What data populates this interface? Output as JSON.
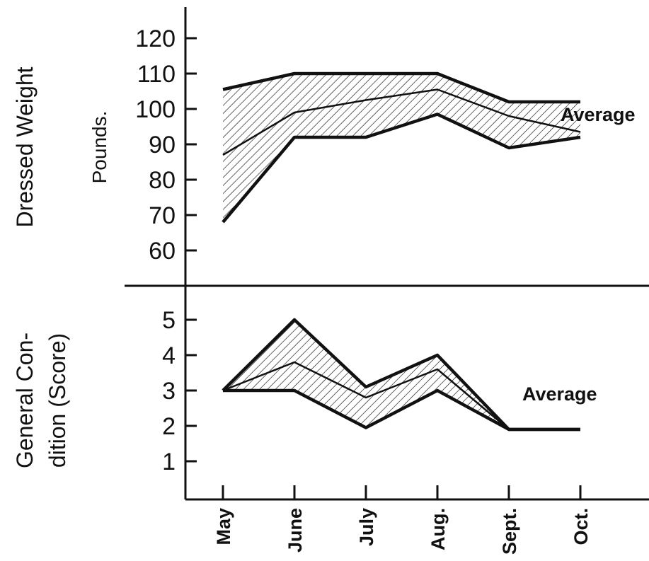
{
  "chart_data": [
    {
      "type": "area",
      "panel": "top",
      "ylabel": "Dressed Weight",
      "unit_label": "Pounds.",
      "categories": [
        "May",
        "June",
        "July",
        "Aug.",
        "Sept.",
        "Oct."
      ],
      "yticks": [
        60,
        70,
        80,
        90,
        100,
        110,
        120
      ],
      "ylim": [
        50,
        130
      ],
      "series": [
        {
          "role": "max",
          "values": [
            105.5,
            110,
            110,
            110,
            102,
            102
          ]
        },
        {
          "name": "Average",
          "role": "average",
          "values": [
            87,
            99,
            102.5,
            105.5,
            98,
            93.5
          ]
        },
        {
          "role": "min",
          "values": [
            68,
            92,
            92,
            98.5,
            89,
            92
          ]
        }
      ],
      "annotation": "Average",
      "fill": "hatched"
    },
    {
      "type": "area",
      "panel": "bottom",
      "ylabel_lines": [
        "General Con-",
        "dition (Score)"
      ],
      "categories": [
        "May",
        "June",
        "July",
        "Aug.",
        "Sept.",
        "Oct."
      ],
      "yticks": [
        1,
        2,
        3,
        4,
        5
      ],
      "ylim": [
        0,
        6
      ],
      "series": [
        {
          "role": "max",
          "values": [
            3,
            5,
            3.1,
            4,
            1.9,
            1.9
          ]
        },
        {
          "name": "Average",
          "role": "average",
          "values": [
            3,
            3.8,
            2.8,
            3.6,
            1.9,
            1.9
          ]
        },
        {
          "role": "min",
          "values": [
            3,
            3,
            1.95,
            3,
            1.9,
            1.9
          ]
        }
      ],
      "annotation": "Average",
      "fill": "hatched"
    }
  ],
  "colors": {
    "ink": "#111111",
    "background": "#ffffff"
  }
}
